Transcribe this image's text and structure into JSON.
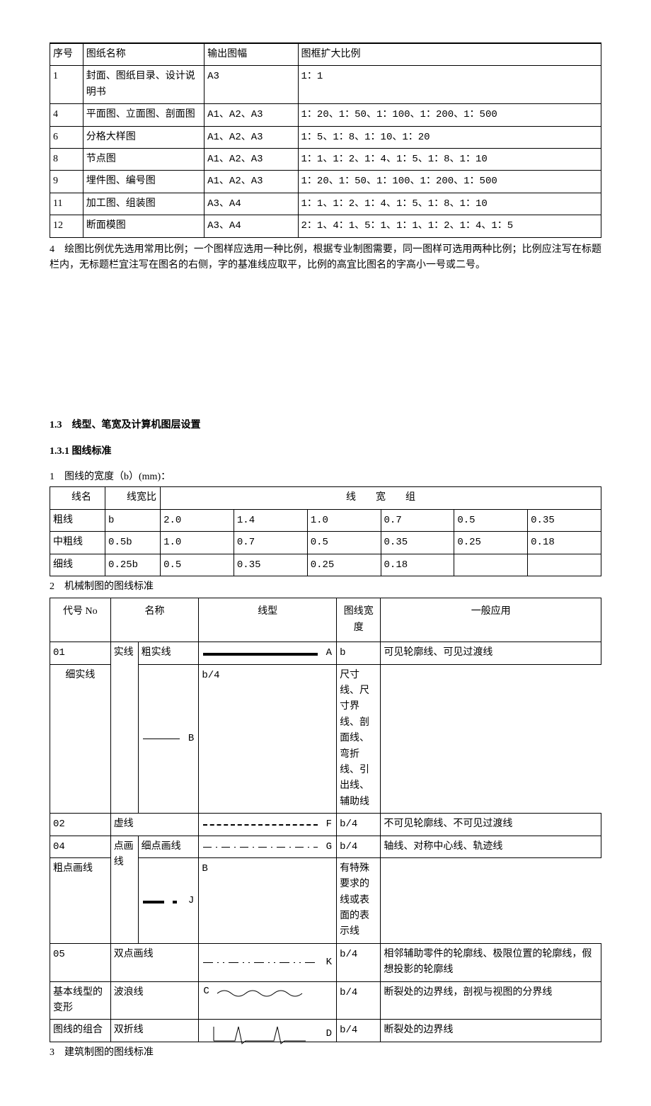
{
  "table1": {
    "headers": [
      "序号",
      "图纸名称",
      "输出图幅",
      "图框扩大比例"
    ],
    "col_widths": [
      "6%",
      "22%",
      "17%",
      "55%"
    ],
    "rows": [
      [
        "1",
        "封面、图纸目录、设计说明书",
        "A3",
        "1：1"
      ],
      [
        "4",
        "平面图、立面图、剖面图",
        "A1、A2、A3",
        "1：20、1：50、1：100、1：200、1：500"
      ],
      [
        "6",
        "分格大样图",
        "A1、A2、A3",
        "1：5、1：8、1：10、1：20"
      ],
      [
        "8",
        "节点图",
        "A1、A2、A3",
        "1：1、1：2、1：4、1：5、1：8、1：10"
      ],
      [
        "9",
        "埋件图、编号图",
        "A1、A2、A3",
        "1：20、1：50、1：100、1：200、1：500"
      ],
      [
        "11",
        "加工图、组装图",
        "A3、A4",
        "1：1、1：2、1：4、1：5、1：8、1：10"
      ],
      [
        "12",
        "断面模图",
        "A3、A4",
        "2：1、4：1、5：1、1：1、1：2、1：4、1：5"
      ]
    ]
  },
  "para4": "4　绘图比例优先选用常用比例；一个图样应选用一种比例，根据专业制图需要，同一图样可选用两种比例；比例应注写在标题栏内，无标题栏宜注写在图名的右侧，字的基准线应取平，比例的高宜比图名的字高小一号或二号。",
  "sec13": "1.3　线型、笔宽及计算机图层设置",
  "sec131": "1.3.1 图线标准",
  "line1": "1　图线的宽度（b）(mm)：",
  "table2": {
    "hd_name": "线名",
    "hd_ratio": "线宽比",
    "hd_group": "线　　宽　　组",
    "col_widths": [
      "10%",
      "10%",
      "13.3%",
      "13.3%",
      "13.3%",
      "13.3%",
      "13.3%",
      "13.3%"
    ],
    "rows": [
      [
        "粗线",
        "b",
        "2.0",
        "1.4",
        "1.0",
        "0.7",
        "0.5",
        "0.35"
      ],
      [
        "中粗线",
        "0.5b",
        "1.0",
        "0.7",
        "0.5",
        "0.35",
        "0.25",
        "0.18"
      ],
      [
        "细线",
        "0.25b",
        "0.5",
        "0.35",
        "0.25",
        "0.18",
        "",
        ""
      ]
    ]
  },
  "line2": "2　机械制图的图线标准",
  "table3": {
    "headers": [
      "代号 No",
      "名称",
      "线型",
      "图线宽度",
      "一般应用"
    ],
    "col_widths": [
      "11%",
      "5%",
      "11%",
      "25%",
      "8%",
      "40%"
    ],
    "rows": [
      {
        "no": "01",
        "g1": "实线",
        "g1rs": 2,
        "name": "粗实线",
        "lt": "solid-thick",
        "lbl": "A",
        "w": "b",
        "use": "可见轮廓线、可见过渡线"
      },
      {
        "name": "细实线",
        "lt": "solid-thin",
        "lbl": "B",
        "w": "b/4",
        "use": "尺寸线、尺寸界线、剖面线、弯折线、引出线、辅助线",
        "indent": true
      },
      {
        "no": "02",
        "g1": "虚线",
        "g1cs": 2,
        "lt": "dashed",
        "lbl": "F",
        "w": "b/4",
        "use": "不可见轮廓线、不可见过渡线"
      },
      {
        "no": "04",
        "g1": "点画线",
        "g1rs": 2,
        "name": "细点画线",
        "lt": "dashdot-thin",
        "lbl": "G",
        "w": "b/4",
        "use": "轴线、对称中心线、轨迹线"
      },
      {
        "name": "粗点画线",
        "lt": "dashdot-thick",
        "lbl": "J",
        "w": "B",
        "use": "有特殊要求的线或表面的表示线"
      },
      {
        "no": "05",
        "g1": "双点画线",
        "g1cs": 2,
        "lt": "dashdotdot",
        "lbl": "K",
        "w": "b/4",
        "use": "相邻辅助零件的轮廓线、极限位置的轮廓线，假想投影的轮廓线"
      },
      {
        "no": "基本线型的变形",
        "nocs": 1,
        "g1": "波浪线",
        "g1cs": 2,
        "lt": "wave",
        "lbl": "C",
        "lblpos": "left",
        "w": "b/4",
        "use": "断裂处的边界线，剖视与视图的分界线"
      },
      {
        "no": "图线的组合",
        "nocs": 1,
        "g1": "双折线",
        "g1cs": 2,
        "lt": "zigzag",
        "lbl": "D",
        "w": "b/4",
        "use": "断裂处的边界线"
      }
    ]
  },
  "line3": "3　建筑制图的图线标准"
}
